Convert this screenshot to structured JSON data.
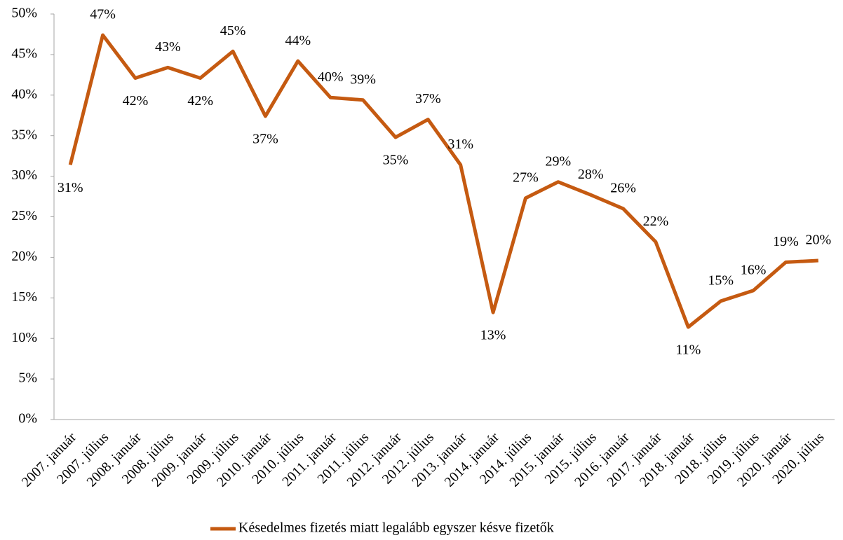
{
  "chart_data": {
    "type": "line",
    "categories": [
      "2007. január",
      "2007. július",
      "2008. január",
      "2008. július",
      "2009. január",
      "2009. július",
      "2010. január",
      "2010. július",
      "2011. január",
      "2011. július",
      "2012. január",
      "2012. július",
      "2013. január",
      "2014. január",
      "2014. július",
      "2015. január",
      "2015. július",
      "2016. január",
      "2017. január",
      "2018. január",
      "2018. július",
      "2019. július",
      "2020. január",
      "2020. július"
    ],
    "series": [
      {
        "name": "Késedelmes fizetés miatt legalább egyszer késve fizetők",
        "color": "#c55a11",
        "values": [
          31.4,
          47.4,
          42.1,
          43.4,
          42.1,
          45.4,
          37.4,
          44.2,
          39.7,
          39.4,
          34.8,
          37.0,
          31.4,
          13.2,
          27.3,
          29.3,
          27.7,
          26.0,
          21.9,
          11.4,
          14.6,
          15.9,
          19.4,
          19.6
        ],
        "value_labels": [
          "31%",
          "47%",
          "42%",
          "43%",
          "42%",
          "45%",
          "37%",
          "44%",
          "40%",
          "39%",
          "35%",
          "37%",
          "31%",
          "13%",
          "27%",
          "29%",
          "28%",
          "26%",
          "22%",
          "11%",
          "15%",
          "16%",
          "19%",
          "20%"
        ]
      }
    ],
    "ylim": [
      0,
      50
    ],
    "yticks": [
      {
        "value": 0,
        "label": "0%"
      },
      {
        "value": 5,
        "label": "5%"
      },
      {
        "value": 10,
        "label": "10%"
      },
      {
        "value": 15,
        "label": "15%"
      },
      {
        "value": 20,
        "label": "20%"
      },
      {
        "value": 25,
        "label": "25%"
      },
      {
        "value": 30,
        "label": "30%"
      },
      {
        "value": 35,
        "label": "35%"
      },
      {
        "value": 40,
        "label": "40%"
      },
      {
        "value": 45,
        "label": "45%"
      },
      {
        "value": 50,
        "label": "50%"
      }
    ],
    "grid": false,
    "legend": "bottom"
  }
}
